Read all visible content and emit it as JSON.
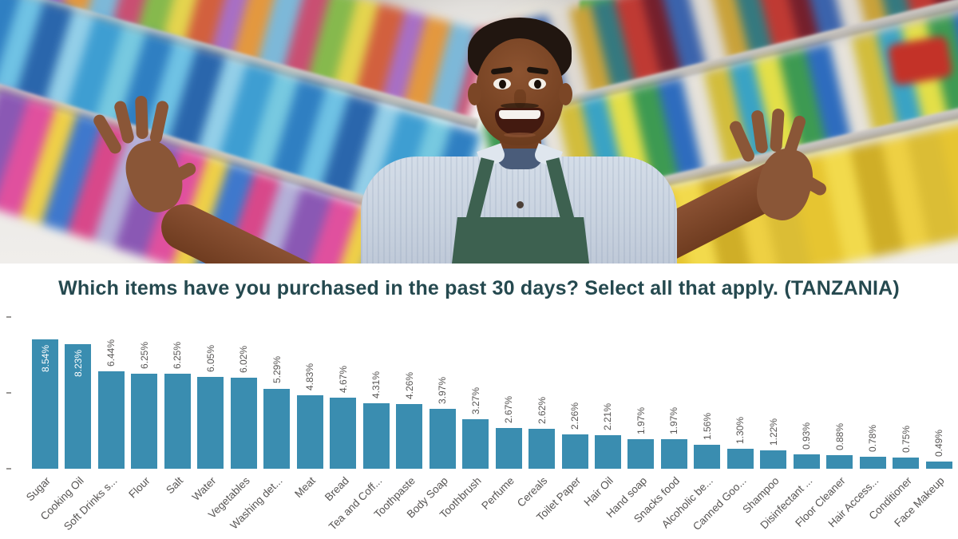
{
  "header": {
    "title": "Which items have you purchased in the past 30 days? Select all that apply. (TANZANIA)",
    "title_color": "#25494f"
  },
  "chart_data": {
    "type": "bar",
    "title": "Which items have you purchased in the past 30 days? Select all that apply. (TANZANIA)",
    "categories": [
      "Sugar",
      "Cooking Oil",
      "Soft Drinks s...",
      "Flour",
      "Salt",
      "Water",
      "Vegetables",
      "Washing det...",
      "Meat",
      "Bread",
      "Tea and Coff...",
      "Toothpaste",
      "Body Soap",
      "Toothbrush",
      "Perfume",
      "Cereals",
      "Toilet Paper",
      "Hair Oil",
      "Hand soap",
      "Snacks food",
      "Alcoholic be...",
      "Canned Goo...",
      "Shampoo",
      "Disinfectant ...",
      "Floor Cleaner",
      "Hair Access...",
      "Conditioner",
      "Face Makeup"
    ],
    "values": [
      8.54,
      8.23,
      6.44,
      6.25,
      6.25,
      6.05,
      6.02,
      5.29,
      4.83,
      4.67,
      4.31,
      4.26,
      3.97,
      3.27,
      2.67,
      2.62,
      2.26,
      2.21,
      1.97,
      1.97,
      1.56,
      1.3,
      1.22,
      0.93,
      0.88,
      0.78,
      0.75,
      0.49
    ],
    "value_labels": [
      "8.54%",
      "8.23%",
      "6.44%",
      "6.25%",
      "6.25%",
      "6.05%",
      "6.02%",
      "5.29%",
      "4.83%",
      "4.67%",
      "4.31%",
      "4.26%",
      "3.97%",
      "3.27%",
      "2.67%",
      "2.62%",
      "2.26%",
      "2.21%",
      "1.97%",
      "1.97%",
      "1.56%",
      "1.30%",
      "1.22%",
      "0.93%",
      "0.88%",
      "0.78%",
      "0.75%",
      "0.49%"
    ],
    "xlabel": "",
    "ylabel": "",
    "ylim": [
      0,
      10
    ],
    "yticks": [
      0,
      5,
      10
    ],
    "grid": false,
    "legend": "none",
    "bar_color": "#3a8db0",
    "value_label_color": "#575554",
    "category_label_color": "#575554",
    "inside_label_count": 2
  }
}
